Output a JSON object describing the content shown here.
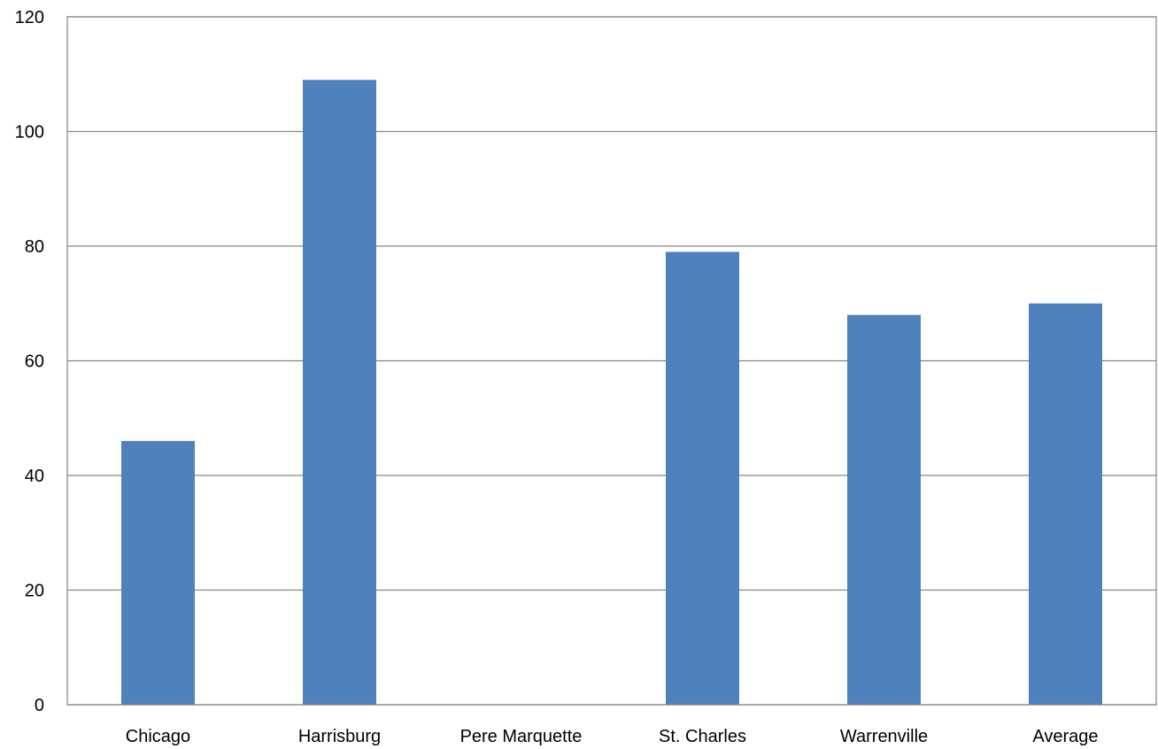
{
  "chart_data": {
    "type": "bar",
    "title": "",
    "xlabel": "",
    "ylabel": "",
    "categories": [
      "Chicago",
      "Harrisburg",
      "Pere Marquette",
      "St. Charles",
      "Warrenville",
      "Average"
    ],
    "values": [
      46,
      109,
      0,
      79,
      68,
      70
    ],
    "ylim": [
      0,
      120
    ],
    "yticks": [
      "0",
      "20",
      "40",
      "60",
      "80",
      "100",
      "120"
    ],
    "grid": "horizontal",
    "legend": "none",
    "bar_color": "#4f81bd",
    "grid_color": "#868686",
    "border_color": "#868686"
  }
}
